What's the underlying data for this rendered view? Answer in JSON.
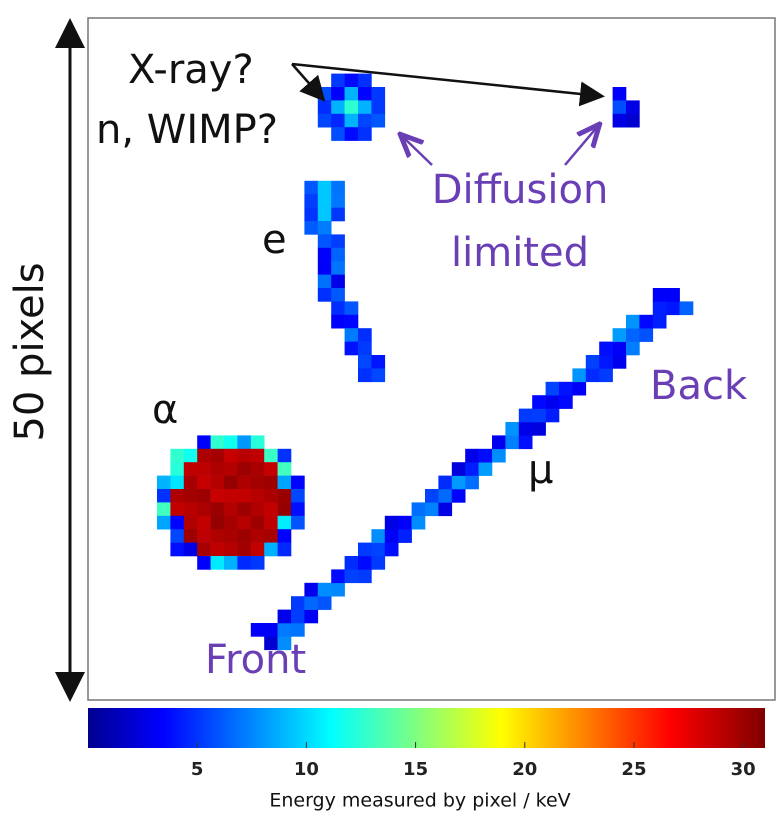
{
  "side_label": "50 pixels",
  "annotations": {
    "xray": "X-ray?",
    "wimp": "n, WIMP?",
    "diffusion": "Diffusion",
    "limited": "limited",
    "electron": "e",
    "alpha": "α",
    "muon": "μ",
    "back": "Back",
    "front": "Front"
  },
  "colorbar": {
    "label": "Energy measured by pixel / keV",
    "lim": [
      0,
      31
    ],
    "ticks": [
      5,
      10,
      15,
      20,
      25,
      30
    ],
    "colormap": "jet"
  }
}
